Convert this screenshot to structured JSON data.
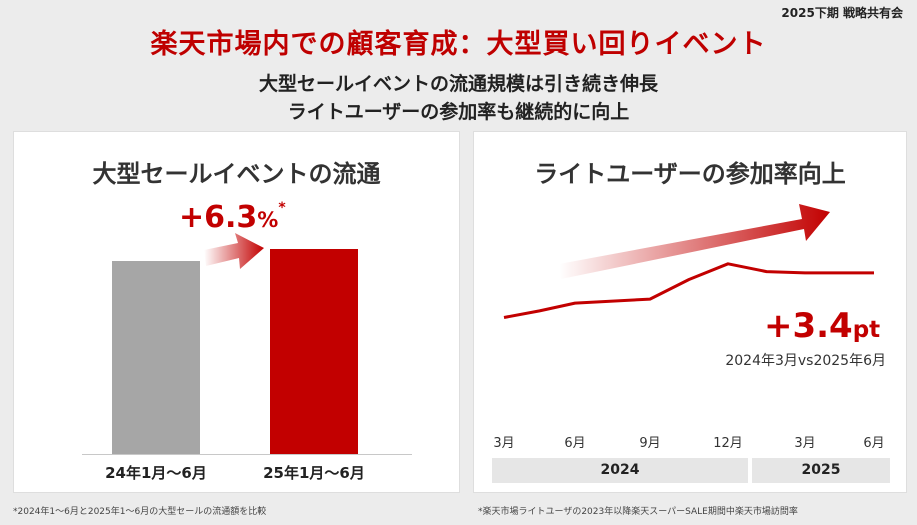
{
  "header": {
    "tag": "2025下期 戦略共有会",
    "title": "楽天市場内での顧客育成：大型買い回りイベント",
    "subtitle_line1": "大型セールイベントの流通規模は引き続き伸長",
    "subtitle_line2": "ライトユーザーの参加率も継続的に向上"
  },
  "left_panel": {
    "title": "大型セールイベントの流通",
    "growth_value": "+6.3",
    "growth_unit": "%",
    "growth_mark": "*",
    "footnote": "*2024年1～6月と2025年1～6月の大型セールの流通額を比較",
    "bar_colors": [
      "#a6a6a6",
      "#c20000"
    ]
  },
  "right_panel": {
    "title": "ライトユーザーの参加率向上",
    "delta_value": "+3.4",
    "delta_unit": "pt",
    "delta_note": "2024年3月vs2025年6月",
    "footnote": "*楽天市場ライトユーザの2023年以降楽天スーパーSALE期間中楽天市場訪問率",
    "accent_color": "#c20000"
  },
  "chart_data": [
    {
      "type": "bar",
      "title": "大型セールイベントの流通",
      "categories": [
        "24年1月～6月",
        "25年1月～6月"
      ],
      "values": [
        100,
        106.3
      ],
      "ylim": [
        0,
        115
      ],
      "annotation": "+6.3%*"
    },
    {
      "type": "line",
      "title": "ライトユーザーの参加率向上",
      "x": [
        "3月",
        "6月",
        "9月",
        "12月",
        "3月",
        "6月"
      ],
      "year_groups": [
        {
          "label": "2024",
          "span": [
            "3月",
            "12月"
          ]
        },
        {
          "label": "2025",
          "span": [
            "3月",
            "6月"
          ]
        }
      ],
      "values_pt": [
        0,
        1.1,
        1.4,
        4.1,
        3.4,
        3.4
      ],
      "intermediate_points": [
        {
          "x_index": 0.5,
          "value_pt": 0.5
        },
        {
          "x_index": 2.5,
          "value_pt": 2.9
        },
        {
          "x_index": 3.5,
          "value_pt": 3.5
        }
      ],
      "ylim": [
        -0.5,
        5
      ],
      "annotation": "+3.4pt"
    }
  ]
}
